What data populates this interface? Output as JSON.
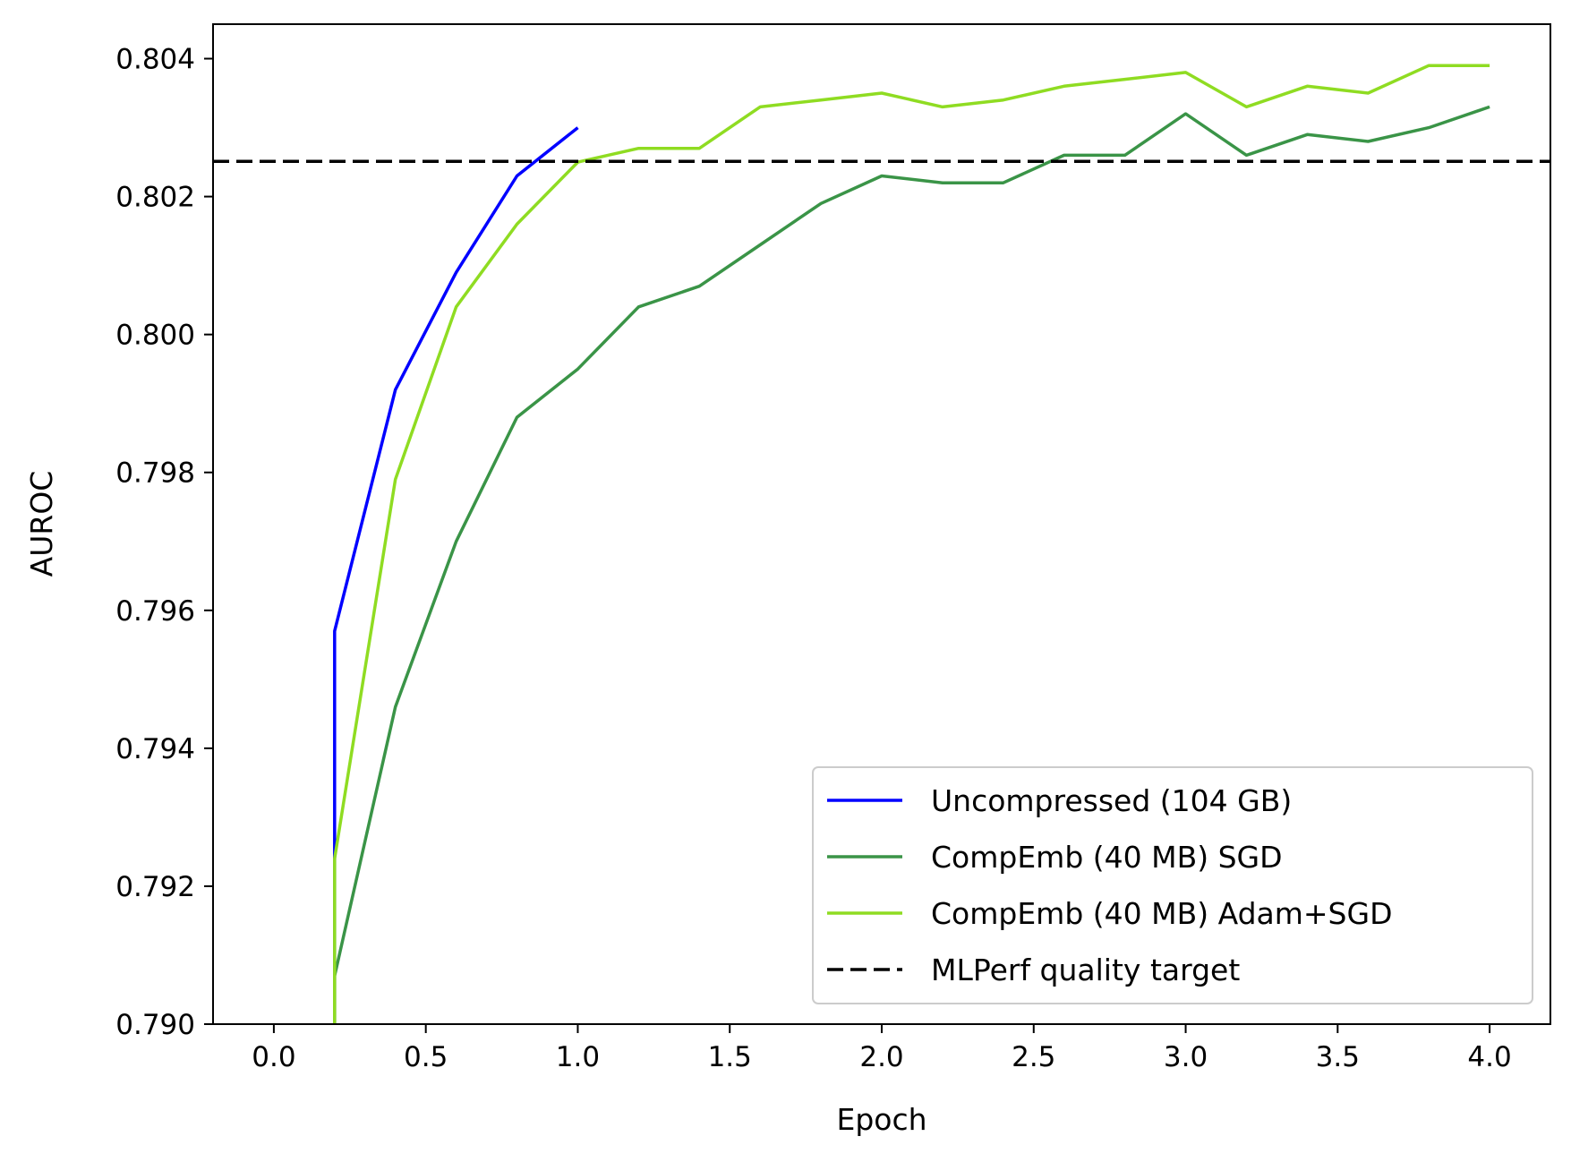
{
  "chart_data": {
    "type": "line",
    "xlabel": "Epoch",
    "ylabel": "AUROC",
    "xlim": [
      -0.2,
      4.2
    ],
    "ylim": [
      0.79,
      0.8045
    ],
    "xticks": [
      0.0,
      0.5,
      1.0,
      1.5,
      2.0,
      2.5,
      3.0,
      3.5,
      4.0
    ],
    "xtick_labels": [
      "0.0",
      "0.5",
      "1.0",
      "1.5",
      "2.0",
      "2.5",
      "3.0",
      "3.5",
      "4.0"
    ],
    "yticks": [
      0.79,
      0.792,
      0.794,
      0.796,
      0.798,
      0.8,
      0.802,
      0.804
    ],
    "ytick_labels": [
      "0.790",
      "0.792",
      "0.794",
      "0.796",
      "0.798",
      "0.800",
      "0.802",
      "0.804"
    ],
    "grid": false,
    "legend_position": "lower-right",
    "series": [
      {
        "name": "Uncompressed (104 GB)",
        "color": "#0000ff",
        "style": "solid",
        "x": [
          0.2,
          0.2,
          0.4,
          0.6,
          0.8,
          1.0
        ],
        "y": [
          0.789,
          0.7957,
          0.7992,
          0.8009,
          0.8023,
          0.803
        ]
      },
      {
        "name": "CompEmb (40 MB) SGD",
        "color": "#3a9447",
        "style": "solid",
        "x": [
          0.2,
          0.2,
          0.4,
          0.6,
          0.8,
          1.0,
          1.2,
          1.4,
          1.6,
          1.8,
          2.0,
          2.2,
          2.4,
          2.6,
          2.8,
          3.0,
          3.2,
          3.4,
          3.6,
          3.8,
          4.0
        ],
        "y": [
          0.789,
          0.7907,
          0.7946,
          0.797,
          0.7988,
          0.7995,
          0.8004,
          0.8007,
          0.8013,
          0.8019,
          0.8023,
          0.8022,
          0.8022,
          0.8026,
          0.8026,
          0.8032,
          0.8026,
          0.8029,
          0.8028,
          0.803,
          0.8033
        ]
      },
      {
        "name": "CompEmb (40 MB) Adam+SGD",
        "color": "#8fdc22",
        "style": "solid",
        "x": [
          0.2,
          0.2,
          0.4,
          0.6,
          0.8,
          1.0,
          1.2,
          1.4,
          1.6,
          1.8,
          2.0,
          2.2,
          2.4,
          2.6,
          2.8,
          3.0,
          3.2,
          3.4,
          3.6,
          3.8,
          4.0
        ],
        "y": [
          0.789,
          0.7924,
          0.7979,
          0.8004,
          0.8016,
          0.8025,
          0.8027,
          0.8027,
          0.8033,
          0.8034,
          0.8035,
          0.8033,
          0.8034,
          0.8036,
          0.8037,
          0.8038,
          0.8033,
          0.8036,
          0.8035,
          0.8039,
          0.8039
        ]
      },
      {
        "name": "MLPerf quality target",
        "color": "#000000",
        "style": "dashed",
        "y_const": 0.80251
      }
    ]
  }
}
